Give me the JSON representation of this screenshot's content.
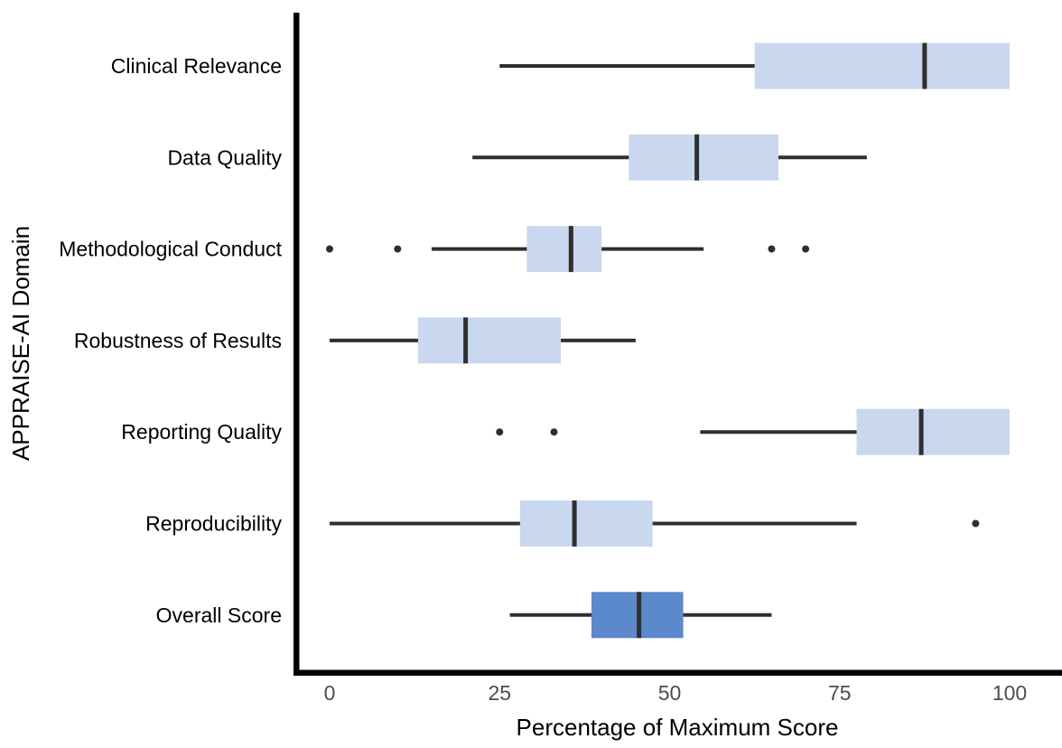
{
  "chart_data": {
    "type": "boxplot",
    "orientation": "horizontal",
    "title": "",
    "xlabel": "Percentage of Maximum Score",
    "ylabel": "APPRAISE-AI Domain",
    "xlim": [
      0,
      100
    ],
    "x_ticks": [
      0,
      25,
      50,
      75,
      100
    ],
    "grid": false,
    "legend": "none",
    "categories": [
      "Clinical Relevance",
      "Data Quality",
      "Methodological Conduct",
      "Robustness of Results",
      "Reporting Quality",
      "Reproducibility",
      "Overall Score"
    ],
    "series": [
      {
        "category": "Clinical Relevance",
        "whisker_min": 25,
        "q1": 62.5,
        "median": 87.5,
        "q3": 100,
        "whisker_max": 100,
        "outliers": [],
        "highlight": false
      },
      {
        "category": "Data Quality",
        "whisker_min": 21,
        "q1": 44,
        "median": 54,
        "q3": 66,
        "whisker_max": 79,
        "outliers": [],
        "highlight": false
      },
      {
        "category": "Methodological Conduct",
        "whisker_min": 15,
        "q1": 29,
        "median": 35.5,
        "q3": 40,
        "whisker_max": 55,
        "outliers": [
          0,
          10,
          65,
          70
        ],
        "highlight": false
      },
      {
        "category": "Robustness of Results",
        "whisker_min": 0,
        "q1": 13,
        "median": 20,
        "q3": 34,
        "whisker_max": 45,
        "outliers": [],
        "highlight": false
      },
      {
        "category": "Reporting Quality",
        "whisker_min": 54.5,
        "q1": 77.5,
        "median": 87,
        "q3": 100,
        "whisker_max": 100,
        "outliers": [
          25,
          33
        ],
        "highlight": false
      },
      {
        "category": "Reproducibility",
        "whisker_min": 0,
        "q1": 28,
        "median": 36,
        "q3": 47.5,
        "whisker_max": 77.5,
        "outliers": [
          95
        ],
        "highlight": false
      },
      {
        "category": "Overall Score",
        "whisker_min": 26.5,
        "q1": 38.5,
        "median": 45.5,
        "q3": 52,
        "whisker_max": 65,
        "outliers": [],
        "highlight": true
      }
    ],
    "colors": {
      "box_fill": "#C9D8EF",
      "highlight_fill": "#5C88CC",
      "line_color": "#2F2F2F",
      "axis_color": "#000000",
      "tick_label_color": "#4D4D4D"
    }
  }
}
